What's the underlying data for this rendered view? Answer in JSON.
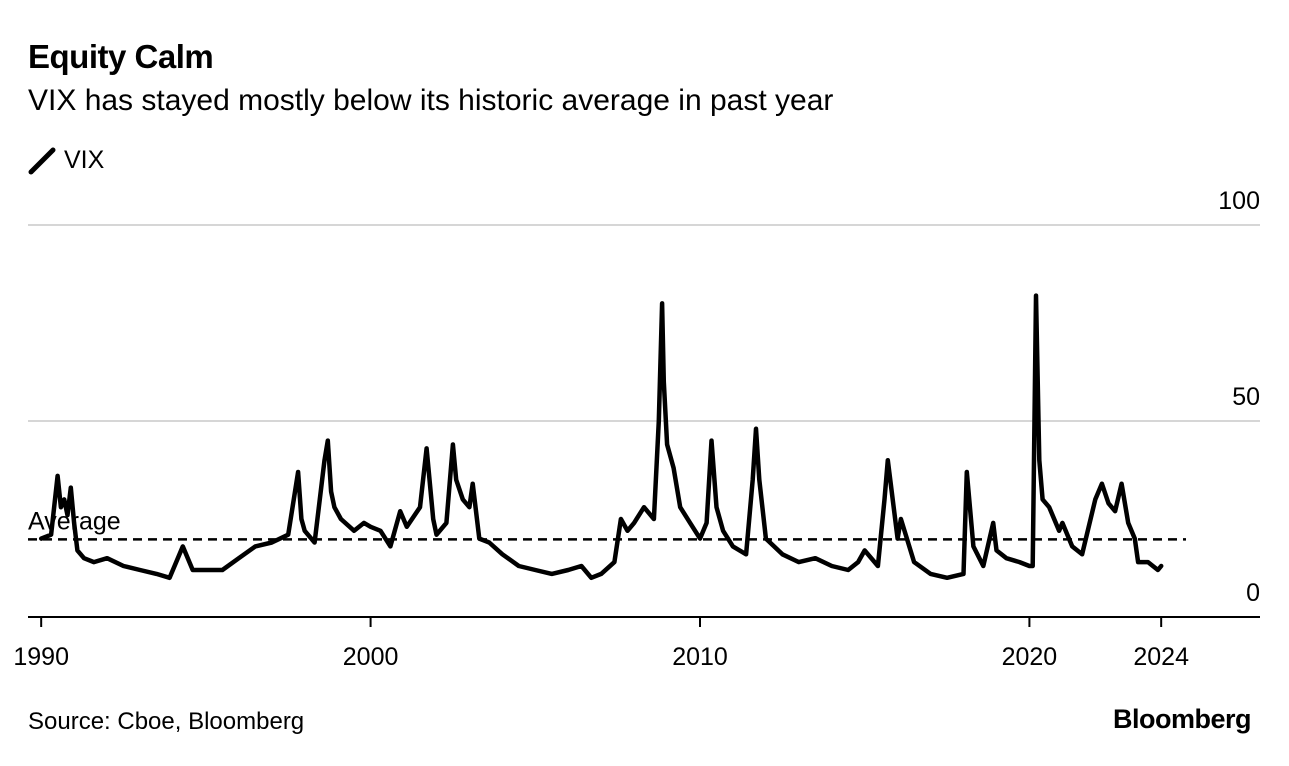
{
  "header": {
    "title": "Equity Calm",
    "subtitle": "VIX has stayed mostly below its historic average in past year"
  },
  "legend": {
    "series_name": "VIX",
    "icon": "line-swatch-icon"
  },
  "footer": {
    "source": "Source: Cboe, Bloomberg",
    "brand": "Bloomberg"
  },
  "colors": {
    "line": "#000000",
    "grid": "#d6d6d6",
    "axis": "#000000"
  },
  "chart_data": {
    "type": "line",
    "title": "Equity Calm",
    "subtitle": "VIX has stayed mostly below its historic average in past year",
    "xlabel": "",
    "ylabel": "",
    "xlim": [
      1989.6,
      2027.0
    ],
    "ylim": [
      0,
      100
    ],
    "y_ticks": [
      {
        "value": 0,
        "label": "0"
      },
      {
        "value": 50,
        "label": "50"
      },
      {
        "value": 100,
        "label": "100"
      }
    ],
    "x_ticks": [
      {
        "value": 1990,
        "label": "1990"
      },
      {
        "value": 2000,
        "label": "2000"
      },
      {
        "value": 2010,
        "label": "2010"
      },
      {
        "value": 2020,
        "label": "2020"
      },
      {
        "value": 2024,
        "label": "2024"
      }
    ],
    "grid": true,
    "y_axis_side": "right",
    "reference_line": {
      "name": "Average",
      "label": "Average",
      "value": 19.8,
      "style": "dashed"
    },
    "series": [
      {
        "name": "VIX",
        "x": [
          1990.0,
          1990.3,
          1990.5,
          1990.6,
          1990.7,
          1990.8,
          1990.9,
          1991.0,
          1991.1,
          1991.3,
          1991.6,
          1992.0,
          1992.5,
          1993.0,
          1993.5,
          1993.9,
          1994.1,
          1994.3,
          1994.6,
          1995.0,
          1995.5,
          1996.0,
          1996.5,
          1997.0,
          1997.5,
          1997.8,
          1997.9,
          1998.0,
          1998.3,
          1998.6,
          1998.7,
          1998.8,
          1998.9,
          1999.1,
          1999.5,
          1999.8,
          2000.0,
          2000.3,
          2000.6,
          2000.9,
          2001.1,
          2001.5,
          2001.7,
          2001.9,
          2002.0,
          2002.3,
          2002.5,
          2002.6,
          2002.8,
          2003.0,
          2003.1,
          2003.3,
          2003.6,
          2004.0,
          2004.5,
          2005.0,
          2005.5,
          2006.0,
          2006.4,
          2006.7,
          2007.0,
          2007.4,
          2007.6,
          2007.8,
          2008.0,
          2008.3,
          2008.6,
          2008.75,
          2008.85,
          2008.9,
          2009.0,
          2009.2,
          2009.4,
          2009.7,
          2010.0,
          2010.2,
          2010.35,
          2010.5,
          2010.7,
          2011.0,
          2011.4,
          2011.6,
          2011.7,
          2011.8,
          2012.0,
          2012.5,
          2013.0,
          2013.5,
          2014.0,
          2014.5,
          2014.8,
          2015.0,
          2015.4,
          2015.6,
          2015.7,
          2016.0,
          2016.1,
          2016.5,
          2017.0,
          2017.5,
          2018.0,
          2018.1,
          2018.3,
          2018.6,
          2018.9,
          2019.0,
          2019.3,
          2019.7,
          2020.0,
          2020.1,
          2020.2,
          2020.3,
          2020.4,
          2020.6,
          2020.9,
          2021.0,
          2021.3,
          2021.6,
          2022.0,
          2022.2,
          2022.4,
          2022.6,
          2022.8,
          2023.0,
          2023.2,
          2023.3,
          2023.6,
          2023.9,
          2024.0
        ],
        "values": [
          20,
          21,
          36,
          28,
          30,
          26,
          33,
          24,
          17,
          15,
          14,
          15,
          13,
          12,
          11,
          10,
          14,
          18,
          12,
          12,
          12,
          15,
          18,
          19,
          21,
          37,
          25,
          22,
          19,
          40,
          45,
          32,
          28,
          25,
          22,
          24,
          23,
          22,
          18,
          27,
          23,
          28,
          43,
          25,
          21,
          24,
          44,
          35,
          30,
          28,
          34,
          20,
          19,
          16,
          13,
          12,
          11,
          12,
          13,
          10,
          11,
          14,
          25,
          22,
          24,
          28,
          25,
          50,
          80,
          60,
          44,
          38,
          28,
          24,
          20,
          24,
          45,
          28,
          22,
          18,
          16,
          35,
          48,
          35,
          20,
          16,
          14,
          15,
          13,
          12,
          14,
          17,
          13,
          30,
          40,
          20,
          25,
          14,
          11,
          10,
          11,
          37,
          18,
          13,
          24,
          17,
          15,
          14,
          13,
          13,
          82,
          40,
          30,
          28,
          22,
          24,
          18,
          16,
          30,
          34,
          29,
          27,
          34,
          24,
          20,
          14,
          14,
          12,
          13
        ]
      }
    ]
  }
}
